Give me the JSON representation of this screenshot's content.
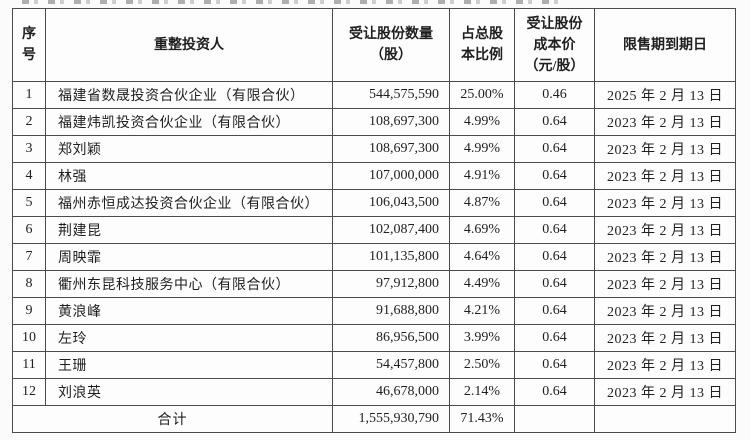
{
  "table": {
    "columns": {
      "index": "序\n号",
      "investor": "重整投资人",
      "shares": "受让股份数量\n（股）",
      "ratio": "占总股\n本比例",
      "cost": "受让股份\n成本价\n（元/股）",
      "expiry": "限售期到期日"
    },
    "rows": [
      {
        "index": "1",
        "investor": "福建省数晟投资合伙企业（有限合伙）",
        "shares": "544,575,590",
        "ratio": "25.00%",
        "cost": "0.46",
        "expiry": "2025 年 2 月 13 日"
      },
      {
        "index": "2",
        "investor": "福建炜凯投资合伙企业（有限合伙）",
        "shares": "108,697,300",
        "ratio": "4.99%",
        "cost": "0.64",
        "expiry": "2023 年 2 月 13 日"
      },
      {
        "index": "3",
        "investor": "郑刘颖",
        "shares": "108,697,300",
        "ratio": "4.99%",
        "cost": "0.64",
        "expiry": "2023 年 2 月 13 日"
      },
      {
        "index": "4",
        "investor": "林强",
        "shares": "107,000,000",
        "ratio": "4.91%",
        "cost": "0.64",
        "expiry": "2023 年 2 月 13 日"
      },
      {
        "index": "5",
        "investor": "福州赤恒成达投资合伙企业（有限合伙）",
        "shares": "106,043,500",
        "ratio": "4.87%",
        "cost": "0.64",
        "expiry": "2023 年 2 月 13 日"
      },
      {
        "index": "6",
        "investor": "荆建昆",
        "shares": "102,087,400",
        "ratio": "4.69%",
        "cost": "0.64",
        "expiry": "2023 年 2 月 13 日"
      },
      {
        "index": "7",
        "investor": "周映霏",
        "shares": "101,135,800",
        "ratio": "4.64%",
        "cost": "0.64",
        "expiry": "2023 年 2 月 13 日"
      },
      {
        "index": "8",
        "investor": "衢州东昆科技服务中心（有限合伙）",
        "shares": "97,912,800",
        "ratio": "4.49%",
        "cost": "0.64",
        "expiry": "2023 年 2 月 13 日"
      },
      {
        "index": "9",
        "investor": "黄浪峰",
        "shares": "91,688,800",
        "ratio": "4.21%",
        "cost": "0.64",
        "expiry": "2023 年 2 月 13 日"
      },
      {
        "index": "10",
        "investor": "左玲",
        "shares": "86,956,500",
        "ratio": "3.99%",
        "cost": "0.64",
        "expiry": "2023 年 2 月 13 日"
      },
      {
        "index": "11",
        "investor": "王珊",
        "shares": "54,457,800",
        "ratio": "2.50%",
        "cost": "0.64",
        "expiry": "2023 年 2 月 13 日"
      },
      {
        "index": "12",
        "investor": "刘浪英",
        "shares": "46,678,000",
        "ratio": "2.14%",
        "cost": "0.64",
        "expiry": "2023 年 2 月 13 日"
      }
    ],
    "total": {
      "label": "合计",
      "shares": "1,555,930,790",
      "ratio": "71.43%",
      "cost": "",
      "expiry": ""
    }
  }
}
